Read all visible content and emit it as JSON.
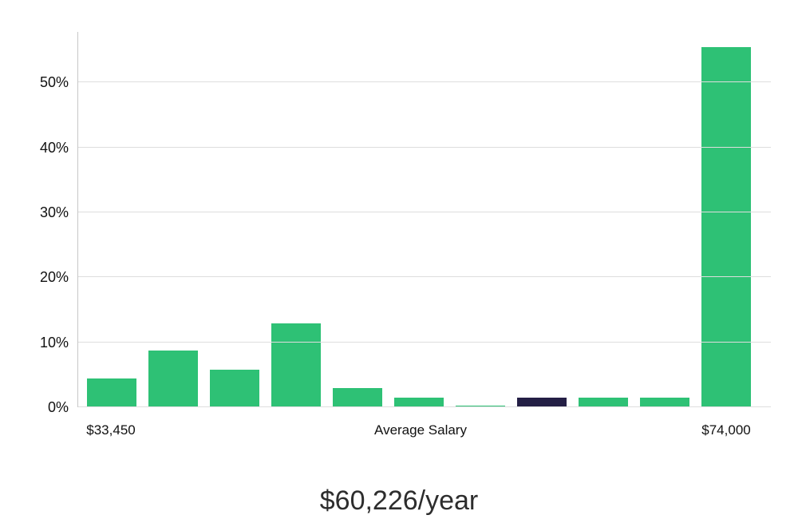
{
  "chart_data": {
    "type": "bar",
    "title": "$60,226/year",
    "xlabel": "Average Salary",
    "x_min_label": "$33,450",
    "x_max_label": "$74,000",
    "ylabel": "",
    "ylim": [
      0,
      57.8
    ],
    "grid": true,
    "legend": false,
    "categories": [
      "bin-1",
      "bin-2",
      "bin-3",
      "bin-4",
      "bin-5",
      "bin-6",
      "bin-7",
      "bin-8",
      "bin-9",
      "bin-10",
      "bin-11"
    ],
    "values": [
      4.4,
      8.7,
      5.8,
      12.9,
      2.9,
      1.5,
      0.2,
      1.5,
      1.5,
      1.5,
      55.5
    ],
    "highlight_index": 7,
    "yticks": [
      {
        "value": 0,
        "label": "0%"
      },
      {
        "value": 10,
        "label": "10%"
      },
      {
        "value": 20,
        "label": "20%"
      },
      {
        "value": 30,
        "label": "30%"
      },
      {
        "value": 40,
        "label": "40%"
      },
      {
        "value": 50,
        "label": "50%"
      }
    ],
    "colors": {
      "bar": "#2ec175",
      "highlight": "#241f45",
      "gridline": "#dedede",
      "axis": "#c7c7c7",
      "text": "#111111"
    }
  }
}
